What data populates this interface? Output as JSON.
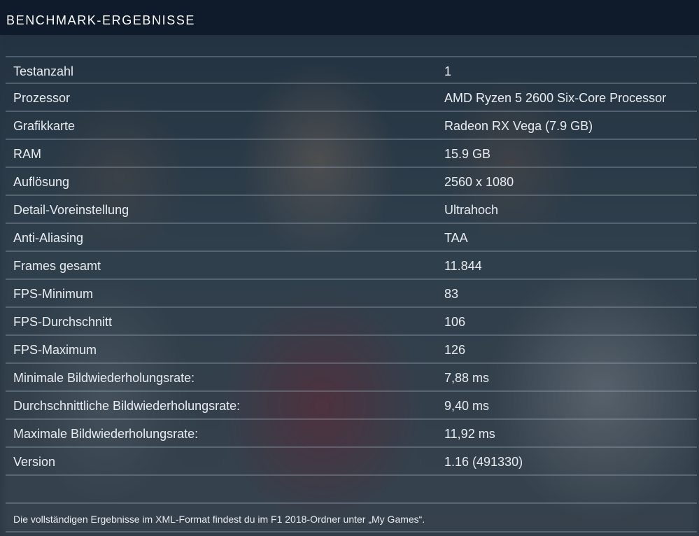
{
  "header": {
    "title": "BENCHMARK-ERGEBNISSE"
  },
  "results": [
    {
      "label": "Testanzahl",
      "value": "1"
    },
    {
      "label": "Prozessor",
      "value": "AMD Ryzen 5 2600 Six-Core Processor"
    },
    {
      "label": "Grafikkarte",
      "value": "Radeon RX Vega (7.9 GB)"
    },
    {
      "label": "RAM",
      "value": "15.9 GB"
    },
    {
      "label": "Auflösung",
      "value": "2560 x 1080"
    },
    {
      "label": "Detail-Voreinstellung",
      "value": "Ultrahoch"
    },
    {
      "label": "Anti-Aliasing",
      "value": "TAA"
    },
    {
      "label": "Frames gesamt",
      "value": "11.844"
    },
    {
      "label": "FPS-Minimum",
      "value": "83"
    },
    {
      "label": "FPS-Durchschnitt",
      "value": "106"
    },
    {
      "label": "FPS-Maximum",
      "value": "126"
    },
    {
      "label": "Minimale Bildwiederholungsrate:",
      "value": "7,88 ms"
    },
    {
      "label": "Durchschnittliche Bildwiederholungsrate:",
      "value": "9,40 ms"
    },
    {
      "label": "Maximale Bildwiederholungsrate:",
      "value": "11,92 ms"
    },
    {
      "label": "Version",
      "value": "1.16 (491330)"
    }
  ],
  "footer": {
    "note": "Die vollständigen Ergebnisse im XML-Format findest du im F1 2018-Ordner unter „My Games“."
  }
}
